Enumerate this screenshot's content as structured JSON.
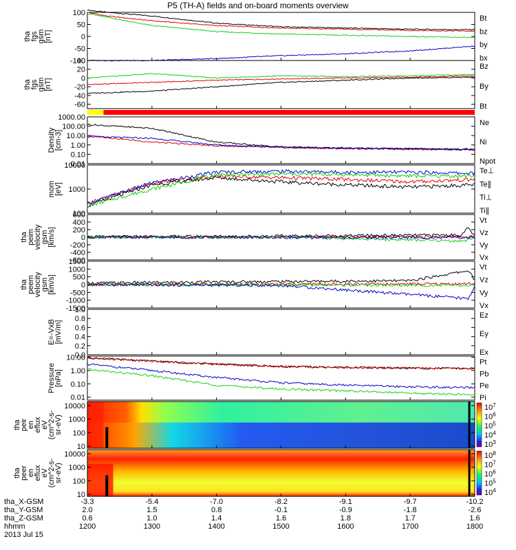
{
  "title": "P5 (TH-A) fields and on-board moments overview",
  "colors": {
    "black": "#000000",
    "red": "#e00000",
    "green": "#10d010",
    "blue": "#0000cc",
    "yellow": "#ffff00"
  },
  "chart_data": [
    {
      "type": "line",
      "id": "p1",
      "ylabel": [
        "tha",
        "fgs",
        "gsm",
        "[nT]"
      ],
      "yticks": [
        "100",
        "50",
        "0",
        "-50",
        "-100"
      ],
      "ylim": [
        -100,
        100
      ],
      "series": [
        {
          "name": "Bt",
          "color": "#000000",
          "x": [
            1200,
            1230,
            1300,
            1400,
            1500,
            1600,
            1700,
            1800
          ],
          "y": [
            110,
            100,
            85,
            55,
            40,
            35,
            30,
            28
          ]
        },
        {
          "name": "bz",
          "color": "#e00000",
          "x": [
            1200,
            1230,
            1300,
            1400,
            1500,
            1600,
            1700,
            1800
          ],
          "y": [
            100,
            85,
            65,
            45,
            35,
            30,
            25,
            22
          ]
        },
        {
          "name": "by",
          "color": "#10d010",
          "x": [
            1200,
            1230,
            1300,
            1400,
            1500,
            1600,
            1700,
            1800
          ],
          "y": [
            95,
            80,
            45,
            20,
            10,
            5,
            0,
            -5
          ]
        },
        {
          "name": "bx",
          "color": "#0000cc",
          "x": [
            1200,
            1300,
            1400,
            1500,
            1600,
            1700,
            1800
          ],
          "y": [
            -100,
            -100,
            -92,
            -80,
            -72,
            -60,
            -40
          ]
        }
      ]
    },
    {
      "type": "line",
      "id": "p2",
      "ylabel": [
        "tha",
        "fgs",
        "gsm",
        "[nT]"
      ],
      "yticks": [
        "40",
        "20",
        "0",
        "-20",
        "-40",
        "-60"
      ],
      "ylim": [
        -70,
        40
      ],
      "series": [
        {
          "name": "Bz",
          "color": "#e00000",
          "x": [
            1200,
            1300,
            1400,
            1500,
            1600,
            1700,
            1800
          ],
          "y": [
            -15,
            -10,
            -5,
            -2,
            0,
            2,
            5
          ]
        },
        {
          "name": "By",
          "color": "#10d010",
          "x": [
            1200,
            1300,
            1400,
            1500,
            1600,
            1700,
            1800
          ],
          "y": [
            0,
            10,
            0,
            5,
            3,
            5,
            8
          ]
        },
        {
          "name": "Bt",
          "color": "#000000",
          "x": [
            1200,
            1300,
            1400,
            1500,
            1600,
            1700,
            1800
          ],
          "y": [
            -35,
            -30,
            -20,
            -10,
            -5,
            0,
            2
          ]
        }
      ]
    },
    {
      "type": "bar",
      "id": "p3",
      "mode_colors": [
        "#ffff00",
        "#ff0000"
      ],
      "switch_x": 1225
    },
    {
      "type": "line",
      "id": "p4",
      "ylabel": [
        "Density",
        "[cm-3]"
      ],
      "yscale": "log",
      "yticks": [
        "1000.00",
        "100.00",
        "10.00",
        "1.00",
        "0.10",
        "0.01"
      ],
      "ylim": [
        0.01,
        1000
      ],
      "series": [
        {
          "name": "Ne",
          "color": "#e00000",
          "x": [
            1200,
            1300,
            1400,
            1500,
            1600,
            1700,
            1800
          ],
          "y": [
            10,
            2,
            0.8,
            0.5,
            0.4,
            0.35,
            0.3
          ]
        },
        {
          "name": "Ni",
          "color": "#000000",
          "x": [
            1200,
            1300,
            1400,
            1500,
            1600,
            1700,
            1800
          ],
          "y": [
            150,
            60,
            2,
            0.6,
            0.45,
            0.4,
            0.35
          ]
        },
        {
          "name": "Npot",
          "color": "#0000cc",
          "x": [
            1200,
            1300,
            1400,
            1500,
            1600,
            1700,
            1800
          ],
          "y": [
            8,
            5,
            1,
            0.6,
            0.45,
            0.4,
            0.3
          ]
        }
      ]
    },
    {
      "type": "line",
      "id": "p5",
      "ylabel": [
        "mom",
        "[eV]"
      ],
      "yscale": "log",
      "yticks": [
        "10000",
        "1000",
        "100"
      ],
      "ylim": [
        100,
        10000
      ],
      "series": [
        {
          "name": "Te⊥",
          "color": "#e00000",
          "x": [
            1200,
            1300,
            1400,
            1500,
            1600,
            1700,
            1800
          ],
          "y": [
            250,
            1800,
            3500,
            3000,
            2500,
            2000,
            2500
          ]
        },
        {
          "name": "Te∥",
          "color": "#000000",
          "x": [
            1200,
            1300,
            1400,
            1500,
            1600,
            1700,
            1800
          ],
          "y": [
            200,
            1500,
            3000,
            2000,
            1500,
            1200,
            1500
          ]
        },
        {
          "name": "Ti⊥",
          "color": "#0000cc",
          "x": [
            1200,
            1300,
            1400,
            1500,
            1600,
            1700,
            1800
          ],
          "y": [
            250,
            1800,
            5000,
            5500,
            5000,
            5000,
            4500
          ]
        },
        {
          "name": "Ti∥",
          "color": "#10d010",
          "x": [
            1200,
            1300,
            1400,
            1500,
            1600,
            1700,
            1800
          ],
          "y": [
            200,
            1000,
            4000,
            4200,
            4000,
            3500,
            3500
          ]
        }
      ]
    },
    {
      "type": "line",
      "id": "p6",
      "ylabel": [
        "tha",
        "peim",
        "velocity",
        "gsm",
        "[km/s]"
      ],
      "yticks": [
        "600",
        "400",
        "200",
        "0",
        "-200",
        "-400",
        "-600"
      ],
      "ylim": [
        -600,
        600
      ],
      "series": [
        {
          "name": "Vt",
          "color": "#000000",
          "x": [
            1200,
            1500,
            1780,
            1790,
            1800
          ],
          "y": [
            10,
            30,
            60,
            250,
            20
          ]
        },
        {
          "name": "Vz",
          "color": "#e00000",
          "x": [
            1200,
            1500,
            1800
          ],
          "y": [
            0,
            5,
            10
          ]
        },
        {
          "name": "Vy",
          "color": "#10d010",
          "x": [
            1200,
            1500,
            1785,
            1800
          ],
          "y": [
            0,
            -5,
            -100,
            0
          ]
        },
        {
          "name": "Vx",
          "color": "#0000cc",
          "x": [
            1200,
            1500,
            1800
          ],
          "y": [
            0,
            -5,
            -10
          ]
        }
      ]
    },
    {
      "type": "line",
      "id": "p7",
      "ylabel": [
        "tha",
        "peem",
        "velocity",
        "gsm",
        "[km/s]"
      ],
      "yticks": [
        "1500",
        "1000",
        "500",
        "0",
        "-500",
        "-1000",
        "-1500"
      ],
      "ylim": [
        -1500,
        1500
      ],
      "series": [
        {
          "name": "Vt",
          "color": "#000000",
          "x": [
            1200,
            1500,
            1700,
            1790,
            1800
          ],
          "y": [
            100,
            200,
            250,
            900,
            300
          ]
        },
        {
          "name": "Vz",
          "color": "#e00000",
          "x": [
            1200,
            1500,
            1800
          ],
          "y": [
            0,
            20,
            50
          ]
        },
        {
          "name": "Vy",
          "color": "#10d010",
          "x": [
            1200,
            1500,
            1800
          ],
          "y": [
            0,
            -20,
            -50
          ]
        },
        {
          "name": "Vx",
          "color": "#0000cc",
          "x": [
            1200,
            1500,
            1790,
            1800
          ],
          "y": [
            0,
            -50,
            -900,
            -100
          ]
        }
      ]
    },
    {
      "type": "line",
      "id": "p8",
      "ylabel": [
        "E=-VxB",
        "[mV/m]"
      ],
      "yticks": [
        "1.0",
        "0.8",
        "0.6",
        "0.4",
        "0.2",
        "0.0"
      ],
      "ylim": [
        0,
        1
      ],
      "series": [
        {
          "name": "Ez",
          "color": "#e00000",
          "x": [],
          "y": []
        },
        {
          "name": "Ey",
          "color": "#10d010",
          "x": [],
          "y": []
        },
        {
          "name": "Ex",
          "color": "#0000cc",
          "x": [],
          "y": []
        }
      ]
    },
    {
      "type": "line",
      "id": "p9",
      "ylabel": [
        "Pressure",
        "[nPa]"
      ],
      "yscale": "log",
      "yticks": [
        "10.00",
        "1.00",
        "0.10",
        "0.01"
      ],
      "ylim": [
        0.006,
        12
      ],
      "series": [
        {
          "name": "Pt",
          "color": "#000000",
          "x": [
            1200,
            1300,
            1400,
            1500,
            1600,
            1700,
            1800
          ],
          "y": [
            9,
            5,
            3,
            2,
            1.7,
            1.5,
            1.4
          ]
        },
        {
          "name": "Pb",
          "color": "#e00000",
          "x": [
            1200,
            1300,
            1400,
            1500,
            1600,
            1700,
            1800
          ],
          "y": [
            9,
            5,
            3,
            2,
            1.7,
            1.5,
            1.4
          ]
        },
        {
          "name": "Pe",
          "color": "#10d010",
          "x": [
            1200,
            1300,
            1400,
            1500,
            1600,
            1700,
            1800
          ],
          "y": [
            1.2,
            0.4,
            0.08,
            0.04,
            0.03,
            0.02,
            0.015
          ]
        },
        {
          "name": "Pi",
          "color": "#0000cc",
          "x": [
            1200,
            1300,
            1400,
            1500,
            1600,
            1700,
            1800
          ],
          "y": [
            3,
            1,
            0.3,
            0.12,
            0.08,
            0.06,
            0.05
          ]
        }
      ]
    },
    {
      "type": "heatmap",
      "id": "p10",
      "ylabel": [
        "tha",
        "peir",
        "en",
        "eflux",
        "eV",
        "(cm^2-s-",
        "sr-eV)"
      ],
      "yscale": "log",
      "yticks": [
        "10000",
        "1000",
        "100",
        "10"
      ],
      "ylim": [
        7,
        20000
      ],
      "colorbar_ticks": [
        "10^7",
        "10^6",
        "10^5",
        "10^4",
        "10^3"
      ]
    },
    {
      "type": "heatmap",
      "id": "p11",
      "ylabel": [
        "tha",
        "peer",
        "en",
        "eflux",
        "eV",
        "(cm^2-s-",
        "sr-eV)"
      ],
      "yscale": "log",
      "yticks": [
        "10000",
        "1000",
        "100",
        "10"
      ],
      "ylim": [
        7,
        20000
      ],
      "colorbar_ticks": [
        "10^8",
        "10^7",
        "10^6",
        "10^5",
        "10^4"
      ]
    }
  ],
  "xaxis": {
    "rows": [
      {
        "label": "tha_X-GSM",
        "values": [
          "-3.3",
          "-5.4",
          "-7.0",
          "-8.2",
          "-9.1",
          "-9.7",
          "-10.2"
        ]
      },
      {
        "label": "tha_Y-GSM",
        "values": [
          "2.0",
          "1.5",
          "0.8",
          "-0.1",
          "-0.9",
          "-1.8",
          "-2.6"
        ]
      },
      {
        "label": "tha_Z-GSM",
        "values": [
          "0.6",
          "1.0",
          "1.4",
          "1.6",
          "1.8",
          "1.7",
          "1.6"
        ]
      },
      {
        "label": "hhmm",
        "values": [
          "1200",
          "1300",
          "1400",
          "1500",
          "1600",
          "1700",
          "1800"
        ]
      }
    ],
    "date": "2013 Jul 15"
  }
}
